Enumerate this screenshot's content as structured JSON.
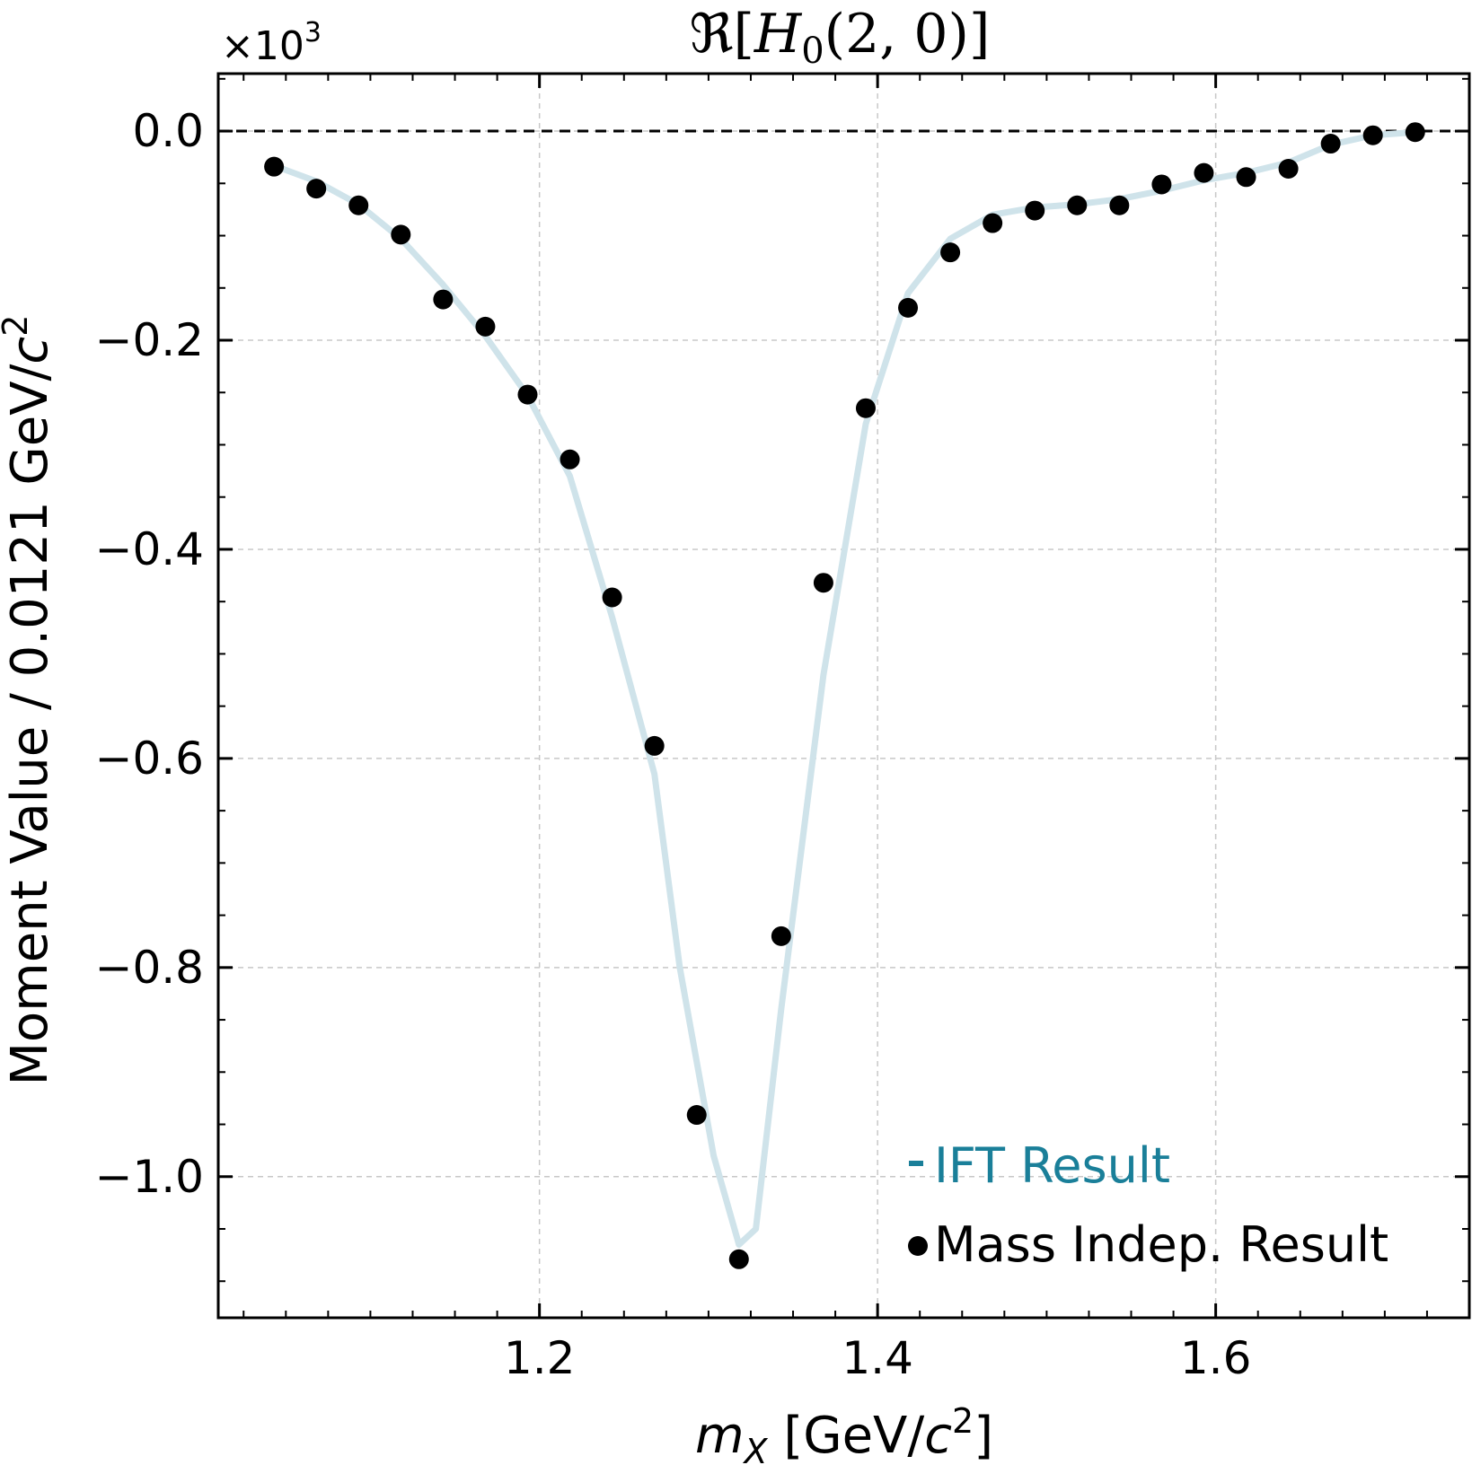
{
  "chart_data": {
    "type": "line",
    "title": "ℜ[H₀(2, 0)]",
    "title_parts": {
      "prefix": "ℜ[",
      "var": "H",
      "sub": "0",
      "args": "(2, 0)]"
    },
    "xlabel_parts": {
      "var": "m",
      "sub": "X",
      "pre": " [GeV/",
      "c": "c",
      "sup": "2",
      "post": "]"
    },
    "ylabel": "Moment Value / 0.0121 GeV/c²",
    "ylabel_parts": {
      "text": "Moment Value / 0.0121 GeV/",
      "c": "c",
      "sup": "2"
    },
    "y_offset_label": {
      "base": "×10",
      "exp": "3"
    },
    "xlim": [
      1.01,
      1.75
    ],
    "ylim": [
      -1.135,
      0.055
    ],
    "x_ticks": [
      1.2,
      1.4,
      1.6
    ],
    "x_tick_labels": [
      "1.2",
      "1.4",
      "1.6"
    ],
    "y_ticks": [
      0.0,
      -0.2,
      -0.4,
      -0.6,
      -0.8,
      -1.0
    ],
    "y_tick_labels": [
      "0.0",
      "−0.2",
      "−0.4",
      "−0.6",
      "−0.8",
      "−1.0"
    ],
    "grid": true,
    "reference_line": {
      "y": 0.0,
      "style": "dashed",
      "color": "#000000"
    },
    "legend": {
      "position": "lower-right"
    },
    "series": [
      {
        "name": "IFT Result",
        "kind": "line",
        "color": "#cfe3ea",
        "legend_color": "#1a7f99",
        "x": [
          1.043,
          1.068,
          1.093,
          1.118,
          1.143,
          1.168,
          1.193,
          1.218,
          1.243,
          1.268,
          1.283,
          1.303,
          1.318,
          1.328,
          1.343,
          1.368,
          1.393,
          1.418,
          1.443,
          1.468,
          1.493,
          1.518,
          1.543,
          1.568,
          1.593,
          1.618,
          1.643,
          1.668,
          1.693,
          1.718
        ],
        "y": [
          -0.033,
          -0.048,
          -0.07,
          -0.103,
          -0.147,
          -0.196,
          -0.253,
          -0.33,
          -0.465,
          -0.615,
          -0.8,
          -0.98,
          -1.065,
          -1.05,
          -0.84,
          -0.52,
          -0.28,
          -0.155,
          -0.103,
          -0.08,
          -0.073,
          -0.07,
          -0.065,
          -0.057,
          -0.047,
          -0.04,
          -0.03,
          -0.013,
          -0.004,
          -0.001
        ]
      },
      {
        "name": "Mass Indep. Result",
        "kind": "scatter",
        "color": "#000000",
        "x": [
          1.043,
          1.068,
          1.093,
          1.118,
          1.143,
          1.168,
          1.193,
          1.218,
          1.243,
          1.268,
          1.293,
          1.318,
          1.343,
          1.368,
          1.393,
          1.418,
          1.443,
          1.468,
          1.493,
          1.518,
          1.543,
          1.568,
          1.593,
          1.618,
          1.643,
          1.668,
          1.693,
          1.718
        ],
        "y": [
          -0.034,
          -0.055,
          -0.071,
          -0.099,
          -0.161,
          -0.187,
          -0.252,
          -0.314,
          -0.446,
          -0.588,
          -0.941,
          -1.079,
          -0.77,
          -0.432,
          -0.265,
          -0.169,
          -0.116,
          -0.088,
          -0.076,
          -0.071,
          -0.071,
          -0.051,
          -0.04,
          -0.044,
          -0.036,
          -0.012,
          -0.004,
          -0.001
        ]
      }
    ]
  }
}
